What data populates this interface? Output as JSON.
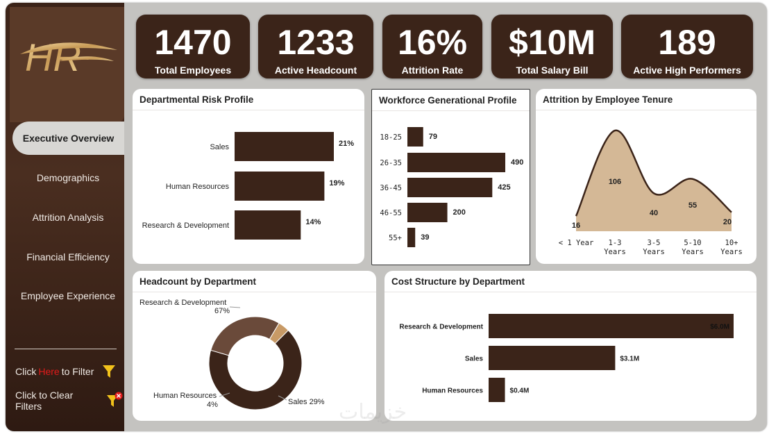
{
  "sidebar": {
    "logo_text": "HR",
    "nav": [
      "Executive Overview",
      "Demographics",
      "Attrition Analysis",
      "Financial Efficiency",
      "Employee Experience"
    ],
    "filter": {
      "pre": "Click",
      "here": "Here",
      "post": "to Filter"
    },
    "clear": "Click to Clear Filters"
  },
  "kpis": [
    {
      "value": "1470",
      "label": "Total Employees"
    },
    {
      "value": "1233",
      "label": "Active Headcount"
    },
    {
      "value": "16%",
      "label": "Attrition Rate"
    },
    {
      "value": "$10M",
      "label": "Total Salary Bill"
    },
    {
      "value": "189",
      "label": "Active High Performers"
    }
  ],
  "colors": {
    "bar": "#3b2419",
    "accent": "#d4b896",
    "mid": "#6a4a3a",
    "light": "#c89a66"
  },
  "watermark": "خزيمات",
  "chart_data": [
    {
      "id": "risk",
      "type": "bar",
      "title": "Departmental Risk Profile",
      "categories": [
        "Sales",
        "Human Resources",
        "Research & Development"
      ],
      "values": [
        21,
        19,
        14
      ],
      "labels": [
        "21%",
        "19%",
        "14%"
      ]
    },
    {
      "id": "gen",
      "type": "bar",
      "title": "Workforce Generational Profile",
      "categories": [
        "18-25",
        "26-35",
        "36-45",
        "46-55",
        "55+"
      ],
      "values": [
        79,
        490,
        425,
        200,
        39
      ],
      "labels": [
        "79",
        "490",
        "425",
        "200",
        "39"
      ]
    },
    {
      "id": "tenure",
      "type": "area",
      "title": "Attrition by Employee Tenure",
      "categories": [
        "< 1 Year",
        "1-3 Years",
        "3-5 Years",
        "5-10 Years",
        "10+ Years"
      ],
      "values": [
        16,
        106,
        40,
        55,
        20
      ],
      "labels": [
        "16",
        "106",
        "40",
        "55",
        "20"
      ]
    },
    {
      "id": "headcount",
      "type": "pie",
      "title": "Headcount by Department",
      "categories": [
        "Research & Development",
        "Sales",
        "Human Resources"
      ],
      "values": [
        67,
        29,
        4
      ],
      "labels": [
        "67%",
        "Sales 29%",
        "4%"
      ]
    },
    {
      "id": "cost",
      "type": "bar",
      "title": "Cost Structure by Department",
      "categories": [
        "Research & Development",
        "Sales",
        "Human Resources"
      ],
      "values": [
        6.0,
        3.1,
        0.4
      ],
      "labels": [
        "$6.0M",
        "$3.1M",
        "$0.4M"
      ]
    }
  ]
}
